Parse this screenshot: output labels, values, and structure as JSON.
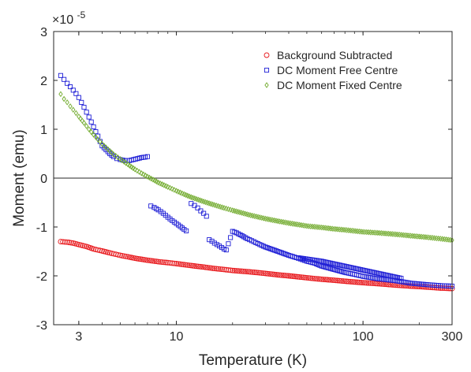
{
  "chart_data": {
    "type": "scatter",
    "xlabel": "Temperature (K)",
    "ylabel": "Moment (emu)",
    "x_scale": "log",
    "xlim": [
      2.2,
      300
    ],
    "ylim": [
      -3e-05,
      3e-05
    ],
    "y_exponent_label": {
      "base": "×10",
      "exponent": "-5"
    },
    "x_ticks": [
      {
        "value": 3,
        "label": "3"
      },
      {
        "value": 10,
        "label": "10"
      },
      {
        "value": 100,
        "label": "100"
      },
      {
        "value": 300,
        "label": "300"
      }
    ],
    "y_ticks": [
      {
        "value": 3e-05,
        "label": "3"
      },
      {
        "value": 2e-05,
        "label": "2"
      },
      {
        "value": 1e-05,
        "label": "1"
      },
      {
        "value": 0,
        "label": "0"
      },
      {
        "value": -1e-05,
        "label": "-1"
      },
      {
        "value": -2e-05,
        "label": "-2"
      },
      {
        "value": -3e-05,
        "label": "-3"
      }
    ],
    "zero_line": true,
    "grid": false,
    "legend_position": "top-right",
    "series": [
      {
        "name": "Background Subtracted",
        "marker": "circle",
        "color": "#e8181c",
        "points": [
          [
            2.4,
            -1.3e-05
          ],
          [
            2.6,
            -1.31e-05
          ],
          [
            2.8,
            -1.33e-05
          ],
          [
            3.0,
            -1.36e-05
          ],
          [
            3.3,
            -1.4e-05
          ],
          [
            3.6,
            -1.45e-05
          ],
          [
            4.0,
            -1.49e-05
          ],
          [
            4.5,
            -1.54e-05
          ],
          [
            5.0,
            -1.58e-05
          ],
          [
            5.5,
            -1.61e-05
          ],
          [
            6.0,
            -1.64e-05
          ],
          [
            7.0,
            -1.68e-05
          ],
          [
            8.0,
            -1.71e-05
          ],
          [
            9.0,
            -1.73e-05
          ],
          [
            10,
            -1.75e-05
          ],
          [
            12,
            -1.79e-05
          ],
          [
            14,
            -1.82e-05
          ],
          [
            16,
            -1.85e-05
          ],
          [
            18,
            -1.87e-05
          ],
          [
            20,
            -1.89e-05
          ],
          [
            25,
            -1.92e-05
          ],
          [
            30,
            -1.95e-05
          ],
          [
            35,
            -1.98e-05
          ],
          [
            40,
            -2e-05
          ],
          [
            50,
            -2.04e-05
          ],
          [
            60,
            -2.07e-05
          ],
          [
            70,
            -2.09e-05
          ],
          [
            80,
            -2.11e-05
          ],
          [
            100,
            -2.14e-05
          ],
          [
            120,
            -2.16e-05
          ],
          [
            150,
            -2.19e-05
          ],
          [
            180,
            -2.21e-05
          ],
          [
            220,
            -2.23e-05
          ],
          [
            260,
            -2.25e-05
          ],
          [
            300,
            -2.26e-05
          ]
        ]
      },
      {
        "name": "DC Moment Free Centre",
        "marker": "square",
        "color": "#1f1fd6",
        "points": [
          [
            2.4,
            2.1e-05
          ],
          [
            2.5,
            2.02e-05
          ],
          [
            2.6,
            1.94e-05
          ],
          [
            2.7,
            1.87e-05
          ],
          [
            2.8,
            1.8e-05
          ],
          [
            2.9,
            1.73e-05
          ],
          [
            3.0,
            1.65e-05
          ],
          [
            3.1,
            1.55e-05
          ],
          [
            3.2,
            1.45e-05
          ],
          [
            3.3,
            1.35e-05
          ],
          [
            3.4,
            1.25e-05
          ],
          [
            3.5,
            1.15e-05
          ],
          [
            3.6,
            1.05e-05
          ],
          [
            3.7,
            9.5e-06
          ],
          [
            3.8,
            8.6e-06
          ],
          [
            3.9,
            7.5e-06
          ],
          [
            4.0,
            6.6e-06
          ],
          [
            4.2,
            5.8e-06
          ],
          [
            4.4,
            5e-06
          ],
          [
            4.6,
            4.4e-06
          ],
          [
            4.8,
            4e-06
          ],
          [
            5.0,
            3.8e-06
          ],
          [
            5.3,
            3.6e-06
          ],
          [
            5.6,
            3.6e-06
          ],
          [
            5.9,
            3.8e-06
          ],
          [
            6.2,
            4e-06
          ],
          [
            6.5,
            4.2e-06
          ],
          [
            6.8,
            4.3e-06
          ],
          [
            7.0,
            4.4e-06
          ],
          [
            7.3,
            -5.7e-06
          ],
          [
            7.6,
            -6e-06
          ],
          [
            8.0,
            -6.5e-06
          ],
          [
            8.5,
            -7.2e-06
          ],
          [
            9.0,
            -8e-06
          ],
          [
            9.5,
            -8.7e-06
          ],
          [
            10.0,
            -9.3e-06
          ],
          [
            10.5,
            -9.9e-06
          ],
          [
            11.0,
            -1.05e-05
          ],
          [
            11.3,
            -1.08e-05
          ],
          [
            12.0,
            -5.2e-06
          ],
          [
            12.5,
            -5.6e-06
          ],
          [
            13.0,
            -6.1e-06
          ],
          [
            13.5,
            -6.7e-06
          ],
          [
            14.0,
            -7.2e-06
          ],
          [
            14.5,
            -7.8e-06
          ],
          [
            15.0,
            -1.26e-05
          ],
          [
            15.5,
            -1.29e-05
          ],
          [
            16.0,
            -1.33e-05
          ],
          [
            16.5,
            -1.36e-05
          ],
          [
            17.0,
            -1.39e-05
          ],
          [
            17.5,
            -1.42e-05
          ],
          [
            18.0,
            -1.45e-05
          ],
          [
            18.5,
            -1.47e-05
          ],
          [
            20.0,
            -1.09e-05
          ],
          [
            21,
            -1.12e-05
          ],
          [
            22,
            -1.16e-05
          ],
          [
            24,
            -1.24e-05
          ],
          [
            26,
            -1.3e-05
          ],
          [
            28,
            -1.36e-05
          ],
          [
            30,
            -1.41e-05
          ],
          [
            35,
            -1.5e-05
          ],
          [
            40,
            -1.58e-05
          ],
          [
            45,
            -1.64e-05
          ],
          [
            50,
            -1.7e-05
          ],
          [
            55,
            -1.74e-05
          ],
          [
            60,
            -1.8e-05
          ],
          [
            70,
            -1.87e-05
          ],
          [
            80,
            -1.93e-05
          ],
          [
            90,
            -1.97e-05
          ],
          [
            100,
            -2.01e-05
          ],
          [
            120,
            -2.06e-05
          ],
          [
            150,
            -2.1e-05
          ],
          [
            180,
            -2.15e-05
          ],
          [
            220,
            -2.18e-05
          ],
          [
            260,
            -2.2e-05
          ],
          [
            300,
            -2.21e-05
          ],
          [
            45,
            -1.63e-05
          ],
          [
            60,
            -1.7e-05
          ],
          [
            160,
            -2.05e-05
          ]
        ]
      },
      {
        "name": "DC Moment Fixed Centre",
        "marker": "diamond",
        "color": "#72ab2e",
        "points": [
          [
            2.4,
            1.72e-05
          ],
          [
            2.5,
            1.62e-05
          ],
          [
            2.6,
            1.55e-05
          ],
          [
            2.7,
            1.47e-05
          ],
          [
            2.8,
            1.4e-05
          ],
          [
            2.9,
            1.33e-05
          ],
          [
            3.0,
            1.26e-05
          ],
          [
            3.2,
            1.13e-05
          ],
          [
            3.4,
            1e-05
          ],
          [
            3.6,
            8.9e-06
          ],
          [
            3.8,
            7.9e-06
          ],
          [
            4.0,
            7e-06
          ],
          [
            4.3,
            5.9e-06
          ],
          [
            4.6,
            4.9e-06
          ],
          [
            5.0,
            3.9e-06
          ],
          [
            5.5,
            2.8e-06
          ],
          [
            6.0,
            1.8e-06
          ],
          [
            6.5,
            1e-06
          ],
          [
            7.0,
            3e-07
          ],
          [
            7.5,
            -3e-07
          ],
          [
            8.0,
            -9e-07
          ],
          [
            9.0,
            -1.8e-06
          ],
          [
            10,
            -2.6e-06
          ],
          [
            11,
            -3.3e-06
          ],
          [
            12,
            -3.9e-06
          ],
          [
            14,
            -4.8e-06
          ],
          [
            16,
            -5.5e-06
          ],
          [
            18,
            -6.1e-06
          ],
          [
            20,
            -6.6e-06
          ],
          [
            25,
            -7.6e-06
          ],
          [
            30,
            -8.3e-06
          ],
          [
            35,
            -8.8e-06
          ],
          [
            40,
            -9.2e-06
          ],
          [
            50,
            -9.8e-06
          ],
          [
            60,
            -1.01e-05
          ],
          [
            70,
            -1.04e-05
          ],
          [
            80,
            -1.06e-05
          ],
          [
            100,
            -1.1e-05
          ],
          [
            120,
            -1.12e-05
          ],
          [
            150,
            -1.15e-05
          ],
          [
            180,
            -1.18e-05
          ],
          [
            220,
            -1.21e-05
          ],
          [
            260,
            -1.24e-05
          ],
          [
            300,
            -1.27e-05
          ]
        ]
      }
    ]
  }
}
